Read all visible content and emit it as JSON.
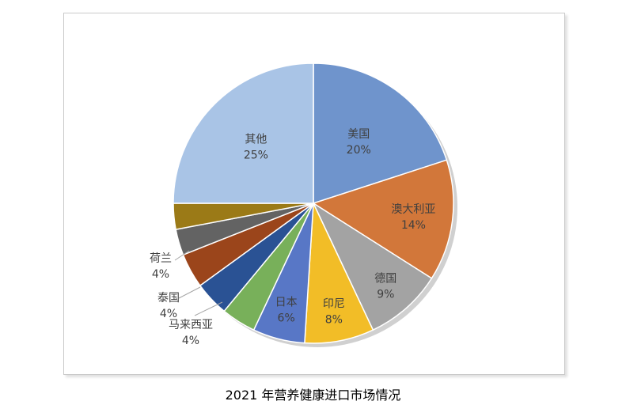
{
  "caption": "2021 年营养健康进口市场情况",
  "chart_data": {
    "type": "pie",
    "title": "",
    "start_angle_deg": 0,
    "direction": "clockwise",
    "slices": [
      {
        "label": "美国",
        "value": 20,
        "value_label": "20%",
        "color": "#6f94cc"
      },
      {
        "label": "澳大利亚",
        "value": 14,
        "value_label": "14%",
        "color": "#d2773a"
      },
      {
        "label": "德国",
        "value": 9,
        "value_label": "9%",
        "color": "#a3a3a3"
      },
      {
        "label": "印尼",
        "value": 8,
        "value_label": "8%",
        "color": "#f2bd27"
      },
      {
        "label": "日本",
        "value": 6,
        "value_label": "6%",
        "color": "#5877c6"
      },
      {
        "label": "马来西亚",
        "value": 4,
        "value_label": "4%",
        "color": "#78b05a"
      },
      {
        "label": "泰国",
        "value": 4,
        "value_label": "4%",
        "color": "#2a5294"
      },
      {
        "label": "荷兰",
        "value": 4,
        "value_label": "4%",
        "color": "#9b451b"
      },
      {
        "label": "",
        "value": 3,
        "value_label": "",
        "color": "#636363"
      },
      {
        "label": "",
        "value": 3,
        "value_label": "",
        "color": "#9b7a17"
      },
      {
        "label": "其他",
        "value": 25,
        "value_label": "25%",
        "color": "#a9c4e6"
      }
    ]
  }
}
